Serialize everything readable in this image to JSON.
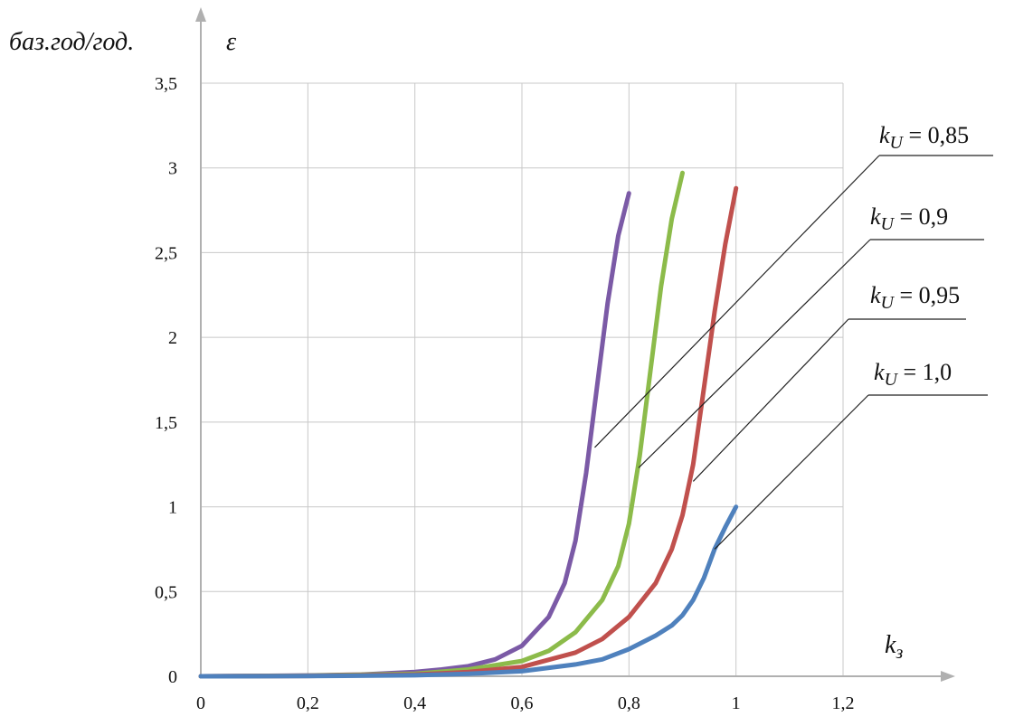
{
  "chart_data": {
    "type": "line",
    "ylabel": "баз.год/год.",
    "ylabel_symbol": "ε",
    "xlabel": "k",
    "xlabel_subscript": "з",
    "xlim": [
      0,
      1.2
    ],
    "ylim": [
      0,
      3.5
    ],
    "x_ticks": [
      "0",
      "0,2",
      "0,4",
      "0,6",
      "0,8",
      "1",
      "1,2"
    ],
    "y_ticks": [
      "0",
      "0,5",
      "1",
      "1,5",
      "2",
      "2,5",
      "3",
      "3,5"
    ],
    "grid": true,
    "series": [
      {
        "name": "kU = 0,85",
        "legend_var": "k",
        "legend_sub": "U",
        "legend_value": " = 0,85",
        "color": "#7b5aa6",
        "points": [
          [
            0,
            0
          ],
          [
            0.1,
            0.002
          ],
          [
            0.2,
            0.005
          ],
          [
            0.3,
            0.01
          ],
          [
            0.4,
            0.025
          ],
          [
            0.45,
            0.04
          ],
          [
            0.5,
            0.06
          ],
          [
            0.55,
            0.1
          ],
          [
            0.6,
            0.18
          ],
          [
            0.65,
            0.35
          ],
          [
            0.68,
            0.55
          ],
          [
            0.7,
            0.8
          ],
          [
            0.72,
            1.2
          ],
          [
            0.74,
            1.7
          ],
          [
            0.76,
            2.2
          ],
          [
            0.78,
            2.6
          ],
          [
            0.8,
            2.85
          ]
        ],
        "leader_at": [
          0.736,
          1.35
        ]
      },
      {
        "name": "kU = 0,9",
        "legend_var": "k",
        "legend_sub": "U",
        "legend_value": " = 0,9",
        "color": "#8cbb4a",
        "points": [
          [
            0,
            0
          ],
          [
            0.2,
            0.003
          ],
          [
            0.4,
            0.015
          ],
          [
            0.5,
            0.04
          ],
          [
            0.6,
            0.09
          ],
          [
            0.65,
            0.15
          ],
          [
            0.7,
            0.26
          ],
          [
            0.75,
            0.45
          ],
          [
            0.78,
            0.65
          ],
          [
            0.8,
            0.9
          ],
          [
            0.82,
            1.3
          ],
          [
            0.84,
            1.8
          ],
          [
            0.86,
            2.3
          ],
          [
            0.88,
            2.7
          ],
          [
            0.9,
            2.97
          ]
        ],
        "leader_at": [
          0.818,
          1.23
        ]
      },
      {
        "name": "kU = 0,95",
        "legend_var": "k",
        "legend_sub": "U",
        "legend_value": " = 0,95",
        "color": "#c0504d",
        "points": [
          [
            0,
            0
          ],
          [
            0.2,
            0.002
          ],
          [
            0.4,
            0.01
          ],
          [
            0.5,
            0.025
          ],
          [
            0.6,
            0.055
          ],
          [
            0.7,
            0.14
          ],
          [
            0.75,
            0.22
          ],
          [
            0.8,
            0.35
          ],
          [
            0.85,
            0.55
          ],
          [
            0.88,
            0.75
          ],
          [
            0.9,
            0.95
          ],
          [
            0.92,
            1.25
          ],
          [
            0.94,
            1.7
          ],
          [
            0.96,
            2.15
          ],
          [
            0.98,
            2.55
          ],
          [
            1.0,
            2.88
          ]
        ],
        "leader_at": [
          0.92,
          1.15
        ]
      },
      {
        "name": "kU = 1,0",
        "legend_var": "k",
        "legend_sub": "U",
        "legend_value": " = 1,0",
        "color": "#4f81bd",
        "points": [
          [
            0,
            0
          ],
          [
            0.2,
            0.001
          ],
          [
            0.4,
            0.006
          ],
          [
            0.5,
            0.015
          ],
          [
            0.6,
            0.03
          ],
          [
            0.7,
            0.07
          ],
          [
            0.75,
            0.1
          ],
          [
            0.8,
            0.16
          ],
          [
            0.85,
            0.24
          ],
          [
            0.88,
            0.3
          ],
          [
            0.9,
            0.36
          ],
          [
            0.92,
            0.45
          ],
          [
            0.94,
            0.58
          ],
          [
            0.96,
            0.75
          ],
          [
            0.98,
            0.88
          ],
          [
            1.0,
            1.0
          ]
        ],
        "leader_at": [
          0.96,
          0.75
        ]
      }
    ]
  }
}
